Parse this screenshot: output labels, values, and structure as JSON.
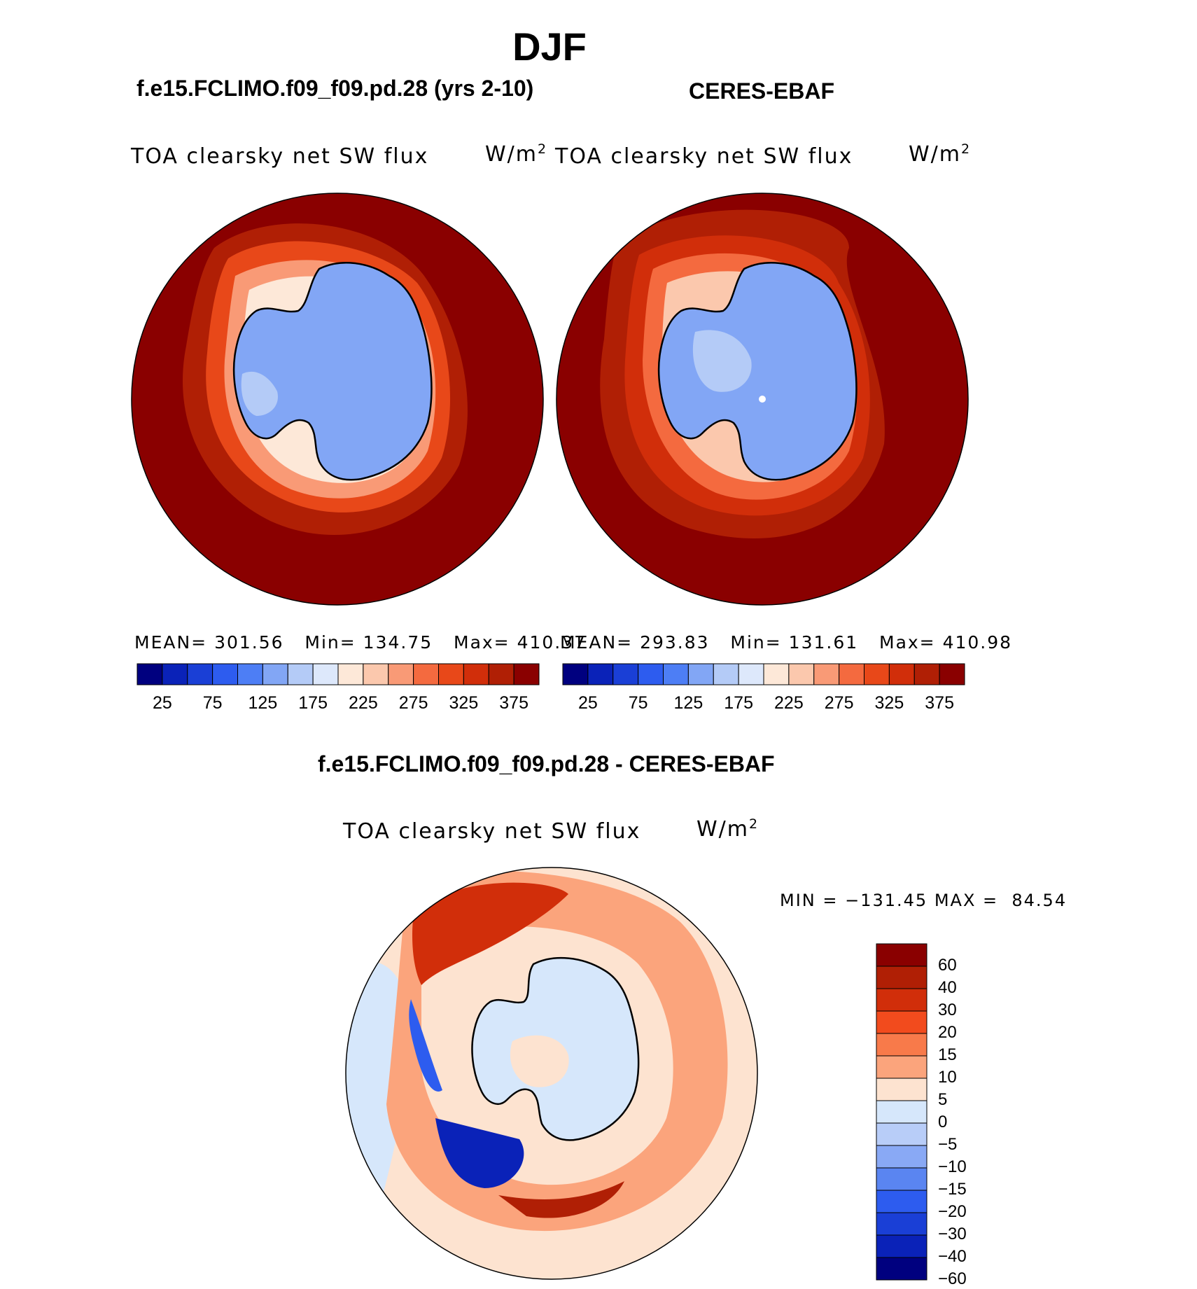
{
  "main_title": "DJF",
  "panels": {
    "model": {
      "case_title": "f.e15.FCLIMO.f09_f09.pd.28 (yrs 2-10)",
      "var_label": "TOA clearsky net SW flux",
      "units": "W/m",
      "units_exp": "2",
      "mean_label": "MEAN=",
      "mean": "301.56",
      "min_label": "Min=",
      "min": "134.75",
      "max_label": "Max=",
      "max": "410.37"
    },
    "obs": {
      "case_title": "CERES-EBAF",
      "var_label": "TOA clearsky net SW flux",
      "units": "W/m",
      "units_exp": "2",
      "mean_label": "MEAN=",
      "mean": "293.83",
      "min_label": "Min=",
      "min": "131.61",
      "max_label": "Max=",
      "max": "410.98"
    },
    "diff": {
      "case_title": "f.e15.FCLIMO.f09_f09.pd.28 - CERES-EBAF",
      "var_label": "TOA clearsky net SW flux",
      "units": "W/m",
      "units_exp": "2",
      "minmax": "MIN = −131.45 MAX =  84.54"
    }
  },
  "colorbar_abs": {
    "tick_labels": [
      "25",
      "75",
      "125",
      "175",
      "225",
      "275",
      "325",
      "375"
    ],
    "colors": [
      "#00007f",
      "#0a22b8",
      "#1a3fd6",
      "#2d5cef",
      "#4d7ef5",
      "#82a6f5",
      "#b4cbf7",
      "#dde8fb",
      "#fde8d8",
      "#fbc8ad",
      "#f99a76",
      "#f46a3f",
      "#e84819",
      "#d12e0a",
      "#b01f05",
      "#8a0000"
    ]
  },
  "colorbar_diff": {
    "labels": [
      "60",
      "40",
      "30",
      "20",
      "15",
      "10",
      "5",
      "0",
      "−5",
      "−10",
      "−15",
      "−20",
      "−30",
      "−40",
      "−60"
    ],
    "colors": [
      "#8a0000",
      "#b01f05",
      "#d12e0a",
      "#f24b1d",
      "#f87a4a",
      "#fba47c",
      "#fde3d0",
      "#d6e7fb",
      "#b8cdf8",
      "#89a9f5",
      "#5a85f1",
      "#2d5cef",
      "#1a3fd6",
      "#0a22b8",
      "#00007f"
    ]
  },
  "chart_data": {
    "type": "heatmap",
    "title": "DJF",
    "projection": "south polar stereographic",
    "variable": "TOA clearsky net SW flux",
    "units": "W/m2",
    "maps": [
      {
        "name": "f.e15.FCLIMO.f09_f09.pd.28 (yrs 2-10)",
        "mean": 301.56,
        "min": 134.75,
        "max": 410.37,
        "levels": [
          25,
          50,
          75,
          100,
          125,
          150,
          175,
          200,
          225,
          250,
          275,
          300,
          325,
          350,
          375
        ]
      },
      {
        "name": "CERES-EBAF",
        "mean": 293.83,
        "min": 131.61,
        "max": 410.98,
        "levels": [
          25,
          50,
          75,
          100,
          125,
          150,
          175,
          200,
          225,
          250,
          275,
          300,
          325,
          350,
          375
        ]
      },
      {
        "name": "f.e15.FCLIMO.f09_f09.pd.28 - CERES-EBAF",
        "min": -131.45,
        "max": 84.54,
        "levels": [
          -60,
          -40,
          -30,
          -20,
          -15,
          -10,
          -5,
          0,
          5,
          10,
          15,
          20,
          30,
          40,
          60
        ]
      }
    ]
  }
}
